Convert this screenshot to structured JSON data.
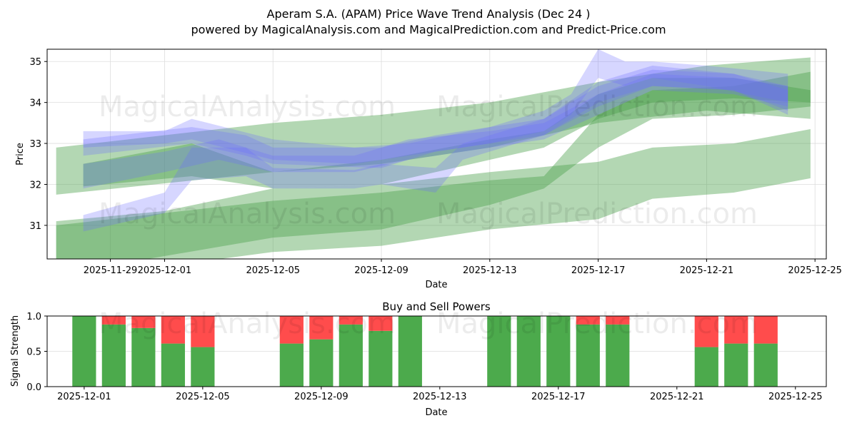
{
  "title": "Aperam S.A. (APAM) Price Wave Trend Analysis (Dec 24 )",
  "subtitle": "powered by MagicalAnalysis.com and MagicalPrediction.com and Predict-Price.com",
  "watermarks": [
    "MagicalAnalysis.com",
    "MagicalPrediction.com"
  ],
  "chart_data": [
    {
      "type": "area",
      "xlabel": "Date",
      "ylabel": "Price",
      "ylim": [
        30.18,
        35.3
      ],
      "xlim": [
        "2025-11-26T16:00",
        "2025-12-25T10:00"
      ],
      "yticks": [
        31,
        32,
        33,
        34,
        35
      ],
      "xticks": [
        "2025-11-29",
        "2025-12-01",
        "2025-12-05",
        "2025-12-09",
        "2025-12-13",
        "2025-12-17",
        "2025-12-21",
        "2025-12-25"
      ],
      "grid": true,
      "colors": {
        "green": "#4a9f4a",
        "blue": "#6a6aff"
      },
      "bands": [
        {
          "color": "green",
          "points": [
            [
              "2025-11-27",
              31.75,
              32.9
            ],
            [
              "2025-12-05",
              32.3,
              33.5
            ],
            [
              "2025-12-09",
              32.5,
              33.7
            ],
            [
              "2025-12-13",
              32.9,
              34.0
            ],
            [
              "2025-12-17",
              33.5,
              34.5
            ],
            [
              "2025-12-21",
              33.8,
              34.9
            ],
            [
              "2025-12-24T20:00",
              33.6,
              35.1
            ]
          ]
        },
        {
          "color": "green",
          "points": [
            [
              "2025-11-27",
              29.9,
              31.1
            ],
            [
              "2025-12-01",
              30.0,
              31.35
            ],
            [
              "2025-12-05",
              30.35,
              31.9
            ],
            [
              "2025-12-09",
              30.5,
              32.0
            ],
            [
              "2025-12-13",
              30.9,
              32.3
            ],
            [
              "2025-12-17",
              31.15,
              32.55
            ],
            [
              "2025-12-19",
              31.65,
              32.9
            ],
            [
              "2025-12-22",
              31.8,
              33.0
            ],
            [
              "2025-12-24T20:00",
              32.15,
              33.35
            ]
          ]
        },
        {
          "color": "green",
          "points": [
            [
              "2025-11-27",
              29.8,
              31.0
            ],
            [
              "2025-12-05",
              30.7,
              31.6
            ],
            [
              "2025-12-09",
              30.9,
              31.8
            ],
            [
              "2025-12-13",
              31.5,
              32.1
            ],
            [
              "2025-12-15",
              31.9,
              32.2
            ],
            [
              "2025-12-17",
              32.9,
              33.7
            ],
            [
              "2025-12-19",
              33.6,
              34.3
            ],
            [
              "2025-12-22",
              33.7,
              34.4
            ],
            [
              "2025-12-24T20:00",
              33.9,
              34.75
            ]
          ]
        },
        {
          "color": "green",
          "points": [
            [
              "2025-11-28",
              31.95,
              32.5
            ],
            [
              "2025-12-02",
              32.2,
              33.0
            ],
            [
              "2025-12-05",
              31.9,
              32.3
            ],
            [
              "2025-12-09",
              32.0,
              32.6
            ],
            [
              "2025-12-13",
              32.6,
              33.1
            ],
            [
              "2025-12-15",
              32.9,
              33.3
            ],
            [
              "2025-12-17",
              33.6,
              34.2
            ],
            [
              "2025-12-19",
              34.0,
              34.6
            ],
            [
              "2025-12-22",
              34.1,
              34.6
            ],
            [
              "2025-12-24T20:00",
              34.0,
              34.3
            ]
          ]
        },
        {
          "color": "blue",
          "points": [
            [
              "2025-11-28",
              32.9,
              33.3
            ],
            [
              "2025-12-01",
              33.0,
              33.3
            ],
            [
              "2025-12-02",
              33.1,
              33.6
            ],
            [
              "2025-12-05",
              32.6,
              33.1
            ],
            [
              "2025-12-08",
              32.5,
              32.9
            ],
            [
              "2025-12-10",
              32.7,
              33.0
            ],
            [
              "2025-12-13",
              33.0,
              33.4
            ],
            [
              "2025-12-15",
              33.3,
              33.8
            ],
            [
              "2025-12-16",
              33.7,
              34.2
            ],
            [
              "2025-12-17",
              34.6,
              35.3
            ],
            [
              "2025-12-18",
              34.4,
              35.0
            ],
            [
              "2025-12-19",
              34.6,
              35.0
            ],
            [
              "2025-12-21",
              34.4,
              34.9
            ],
            [
              "2025-12-24",
              34.0,
              34.7
            ]
          ]
        },
        {
          "color": "blue",
          "points": [
            [
              "2025-11-28",
              32.7,
              33.1
            ],
            [
              "2025-12-02",
              33.0,
              33.4
            ],
            [
              "2025-12-04",
              32.7,
              33.2
            ],
            [
              "2025-12-05",
              32.5,
              32.9
            ],
            [
              "2025-12-09",
              32.4,
              32.9
            ],
            [
              "2025-12-11",
              32.8,
              33.2
            ],
            [
              "2025-12-13",
              33.0,
              33.4
            ],
            [
              "2025-12-15",
              33.2,
              33.6
            ],
            [
              "2025-12-17",
              34.0,
              34.5
            ],
            [
              "2025-12-19",
              34.4,
              34.9
            ],
            [
              "2025-12-22",
              34.3,
              34.7
            ],
            [
              "2025-12-24",
              33.8,
              34.4
            ]
          ]
        },
        {
          "color": "blue",
          "points": [
            [
              "2025-11-28",
              30.85,
              31.25
            ],
            [
              "2025-12-01",
              31.3,
              31.8
            ],
            [
              "2025-12-02",
              32.1,
              32.9
            ],
            [
              "2025-12-04",
              32.2,
              32.9
            ],
            [
              "2025-12-05",
              31.9,
              32.4
            ],
            [
              "2025-12-08",
              31.9,
              32.35
            ],
            [
              "2025-12-09",
              32.0,
              32.5
            ],
            [
              "2025-12-11",
              31.8,
              32.4
            ],
            [
              "2025-12-12",
              32.6,
              33.0
            ],
            [
              "2025-12-15",
              33.2,
              33.6
            ],
            [
              "2025-12-17",
              33.9,
              34.4
            ],
            [
              "2025-12-19",
              34.4,
              34.8
            ],
            [
              "2025-12-22",
              34.3,
              34.7
            ],
            [
              "2025-12-24",
              33.7,
              34.3
            ]
          ]
        },
        {
          "color": "blue",
          "points": [
            [
              "2025-11-28",
              31.9,
              32.5
            ],
            [
              "2025-12-01",
              32.3,
              32.8
            ],
            [
              "2025-12-03",
              32.6,
              33.1
            ],
            [
              "2025-12-05",
              32.3,
              32.7
            ],
            [
              "2025-12-08",
              32.3,
              32.7
            ],
            [
              "2025-12-10",
              32.6,
              33.1
            ],
            [
              "2025-12-13",
              32.9,
              33.3
            ],
            [
              "2025-12-15",
              33.1,
              33.5
            ],
            [
              "2025-12-17",
              33.7,
              34.2
            ],
            [
              "2025-12-19",
              34.3,
              34.7
            ],
            [
              "2025-12-22",
              34.2,
              34.6
            ],
            [
              "2025-12-24",
              33.9,
              34.4
            ]
          ]
        }
      ]
    },
    {
      "type": "bar",
      "title": "Buy and Sell Powers",
      "xlabel": "Date",
      "ylabel": "Signal Strength",
      "ylim": [
        0,
        1
      ],
      "yticks": [
        "0.0",
        "0.5",
        "1.0"
      ],
      "xlim": [
        "2025-11-29T18:00",
        "2025-12-26T01:00"
      ],
      "xticks": [
        "2025-12-01",
        "2025-12-05",
        "2025-12-09",
        "2025-12-13",
        "2025-12-17",
        "2025-12-21",
        "2025-12-25"
      ],
      "colors": {
        "buy": "#4caa4c",
        "sell": "#ff4c4c"
      },
      "dates": [
        "2025-12-01",
        "2025-12-02",
        "2025-12-03",
        "2025-12-04",
        "2025-12-05",
        "2025-12-08",
        "2025-12-09",
        "2025-12-10",
        "2025-12-11",
        "2025-12-12",
        "2025-12-15",
        "2025-12-16",
        "2025-12-17",
        "2025-12-18",
        "2025-12-19",
        "2025-12-22",
        "2025-12-23",
        "2025-12-24"
      ],
      "buy": [
        1.0,
        0.88,
        0.83,
        0.61,
        0.56,
        0.61,
        0.67,
        0.88,
        0.79,
        1.0,
        1.0,
        1.0,
        1.0,
        0.88,
        0.88,
        0.56,
        0.61,
        0.61
      ]
    }
  ]
}
